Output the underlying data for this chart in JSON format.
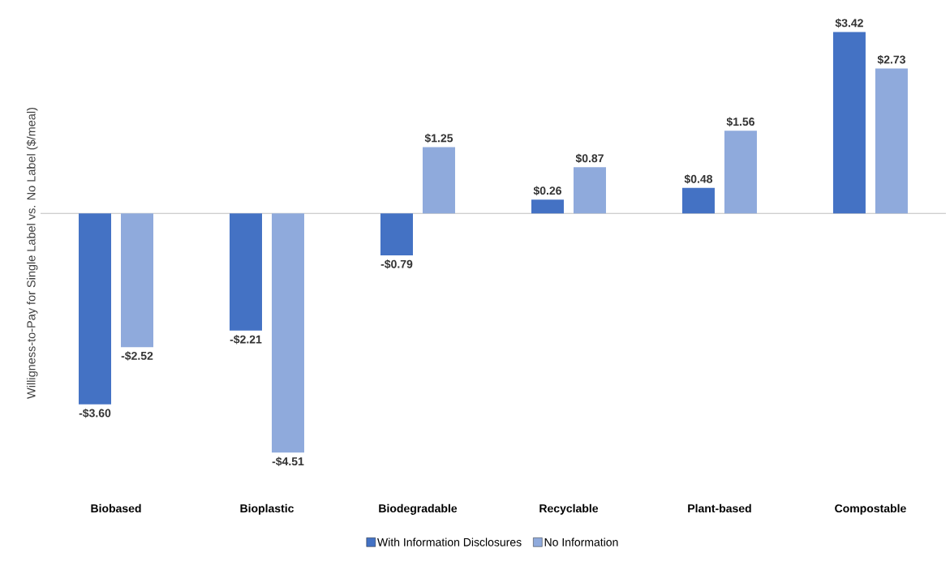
{
  "chart_data": {
    "type": "bar",
    "ylabel": "Willigness-to-Pay for Single Label vs. No Label ($/meal)",
    "categories": [
      "Biobased",
      "Bioplastic",
      "Biodegradable",
      "Recyclable",
      "Plant-based",
      "Compostable"
    ],
    "series": [
      {
        "name": "With Information Disclosures",
        "color": "#4472c4",
        "values": [
          -3.6,
          -2.21,
          -0.79,
          0.26,
          0.48,
          3.42
        ],
        "value_labels": [
          "-$3.60",
          "-$2.21",
          "-$0.79",
          "$0.26",
          "$0.48",
          "$3.42"
        ]
      },
      {
        "name": "No Information",
        "color": "#8faadc",
        "values": [
          -2.52,
          -4.51,
          1.25,
          0.87,
          1.56,
          2.73
        ],
        "value_labels": [
          "-$2.52",
          "-$4.51",
          "$1.25",
          "$0.87",
          "$1.56",
          "$2.73"
        ]
      }
    ],
    "legend": "bottom"
  }
}
